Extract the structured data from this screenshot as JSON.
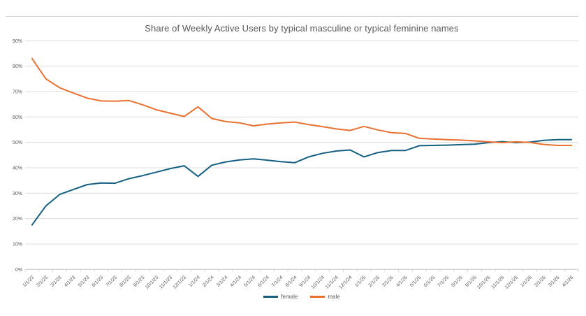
{
  "chart_data": {
    "type": "line",
    "title": "Share of Weekly Active Users by typical masculine or typical feminine names",
    "xlabel": "",
    "ylabel": "",
    "ylim": [
      0,
      90
    ],
    "y_tick_labels": [
      "0%",
      "10%",
      "20%",
      "30%",
      "40%",
      "50%",
      "60%",
      "70%",
      "80%",
      "90%"
    ],
    "grid": "horizontal",
    "legend_position": "bottom-center",
    "categories": [
      "1/1/23",
      "2/1/23",
      "3/1/23",
      "4/1/23",
      "5/1/23",
      "6/1/23",
      "7/1/23",
      "8/1/23",
      "9/1/23",
      "10/1/23",
      "11/1/23",
      "12/1/23",
      "1/1/24",
      "2/1/24",
      "3/1/24",
      "4/1/24",
      "5/1/24",
      "6/1/24",
      "7/1/24",
      "8/1/24",
      "9/1/24",
      "10/1/24",
      "11/1/24",
      "12/1/24",
      "1/1/25",
      "2/1/25",
      "3/1/25",
      "4/1/25",
      "5/1/25",
      "6/1/25",
      "7/1/25",
      "8/1/25",
      "9/1/25",
      "10/1/25",
      "11/1/25",
      "12/1/25",
      "1/1/26",
      "2/1/26",
      "3/1/26",
      "4/1/26"
    ],
    "series": [
      {
        "name": "female",
        "color": "#156082",
        "values": [
          17.5,
          25,
          29.5,
          31.5,
          33.4,
          34,
          33.9,
          35.7,
          36.9,
          38.3,
          39.7,
          40.8,
          36.6,
          41,
          42.3,
          43.1,
          43.5,
          43,
          42.4,
          42,
          44.3,
          45.7,
          46.6,
          47,
          44.3,
          46,
          46.8,
          46.8,
          48.7,
          48.8,
          48.9,
          49.1,
          49.3,
          49.9,
          50.3,
          49.9,
          50.1,
          50.8,
          51.1,
          51.1
        ]
      },
      {
        "name": "male",
        "color": "#E97132",
        "values": [
          83,
          75,
          71.5,
          69.4,
          67.4,
          66.3,
          66.2,
          66.5,
          64.8,
          62.8,
          61.5,
          60.2,
          64,
          59.4,
          58.2,
          57.7,
          56.5,
          57.2,
          57.7,
          58,
          57,
          56.2,
          55.3,
          54.7,
          56.3,
          54.9,
          53.8,
          53.5,
          51.6,
          51.3,
          51.1,
          50.9,
          50.6,
          50.2,
          49.9,
          50.2,
          50,
          49.2,
          48.8,
          48.8
        ]
      }
    ],
    "colors": {
      "title_text": "#595959",
      "axis_text": "#595959",
      "gridline": "#dcdcdc",
      "axis_line": "#c9c9c9",
      "top_border": "#d2d2d2"
    }
  }
}
